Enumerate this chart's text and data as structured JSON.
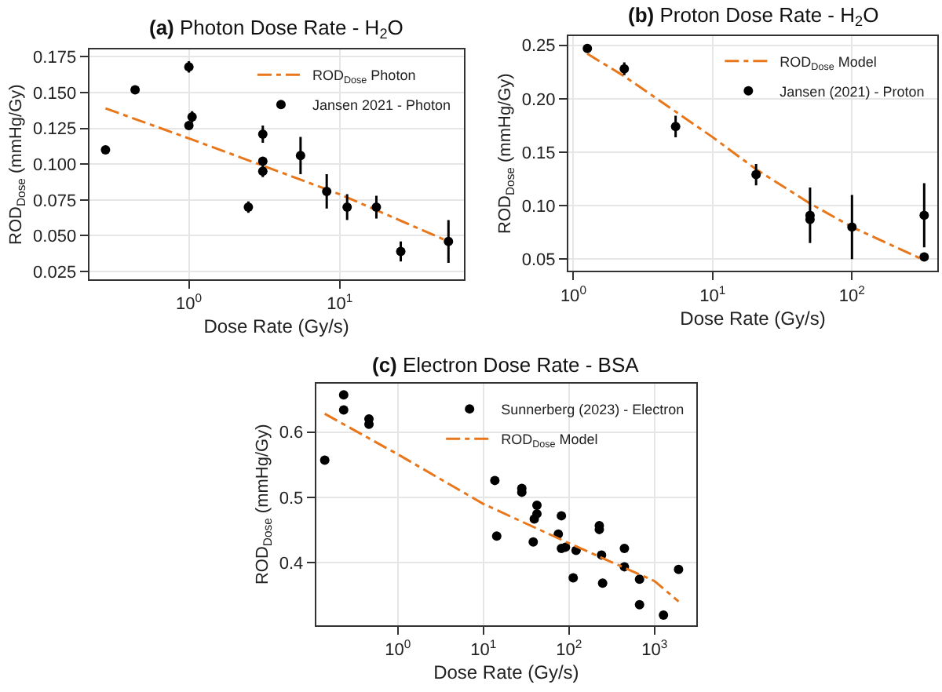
{
  "chart_data": [
    {
      "type": "scatter",
      "title": "(a) Photon Dose Rate - H$_{2}$O",
      "xlabel": "Dose Rate (Gy/s)",
      "ylabel": "ROD$_{Dose}$ (mmHg/Gy)",
      "log": "x",
      "grid": true,
      "legend": "top right",
      "xlim": [
        0.218,
        66.4
      ],
      "xticks": [
        {
          "value": 1,
          "label": "10$^{0}$"
        },
        {
          "value": 10,
          "label": "10$^{1}$"
        }
      ],
      "ylim": [
        0.0196,
        0.18
      ],
      "yticks": [
        {
          "value": 0.025,
          "label": "0.025"
        },
        {
          "value": 0.05,
          "label": "0.050"
        },
        {
          "value": 0.075,
          "label": "0.075"
        },
        {
          "value": 0.1,
          "label": "0.100"
        },
        {
          "value": 0.125,
          "label": "0.125"
        },
        {
          "value": 0.15,
          "label": "0.150"
        },
        {
          "value": 0.175,
          "label": "0.175"
        }
      ],
      "series": [
        {
          "name": "ROD$_{Dose}$ Photon",
          "type": "line",
          "line_style": "dashed",
          "marker": "none",
          "color": "#e8761a",
          "x": [
            0.28,
            1,
            3.09,
            10,
            52.6
          ],
          "values": [
            0.139,
            0.118,
            0.099,
            0.079,
            0.046
          ]
        },
        {
          "name": "Jansen 2021 - Photon",
          "marker": "circle",
          "color": "#000000",
          "x": [
            0.28,
            0.44,
            1.0,
            1.0,
            1.05,
            2.48,
            3.09,
            3.09,
            3.09,
            5.5,
            8.2,
            11.2,
            17.5,
            25.4,
            52.6
          ],
          "values": [
            0.11,
            0.152,
            0.168,
            0.127,
            0.133,
            0.07,
            0.121,
            0.102,
            0.095,
            0.106,
            0.081,
            0.07,
            0.07,
            0.039,
            0.046
          ],
          "errors": [
            null,
            null,
            0.004,
            null,
            0.004,
            0.004,
            0.006,
            null,
            0.004,
            0.013,
            0.012,
            0.009,
            0.008,
            0.007,
            0.015
          ]
        }
      ]
    },
    {
      "type": "scatter",
      "title": "(b) Proton Dose Rate - H$_{2}$O",
      "xlabel": "Dose Rate (Gy/s)",
      "ylabel": "ROD$_{Dose}$ (mmHg/Gy)",
      "log": "x",
      "grid": true,
      "legend": "top right",
      "xlim": [
        0.92,
        410
      ],
      "xticks": [
        {
          "value": 1,
          "label": "10$^{0}$"
        },
        {
          "value": 10,
          "label": "10$^{1}$"
        },
        {
          "value": 100,
          "label": "10$^{2}$"
        }
      ],
      "ylim": [
        0.0389,
        0.2587
      ],
      "yticks": [
        {
          "value": 0.05,
          "label": "0.05"
        },
        {
          "value": 0.1,
          "label": "0.10"
        },
        {
          "value": 0.15,
          "label": "0.15"
        },
        {
          "value": 0.2,
          "label": "0.20"
        },
        {
          "value": 0.25,
          "label": "0.25"
        }
      ],
      "series": [
        {
          "name": "ROD$_{Dose}$ Model",
          "type": "line",
          "line_style": "dashed",
          "marker": "none",
          "color": "#e8761a",
          "x": [
            1.26,
            2.32,
            10,
            20.5,
            50,
            100,
            330
          ],
          "values": [
            0.242,
            0.221,
            0.164,
            0.134,
            0.102,
            0.08,
            0.049
          ]
        },
        {
          "name": "Jansen (2021) - Proton",
          "marker": "circle",
          "color": "#000000",
          "x": [
            1.26,
            2.32,
            5.42,
            20.5,
            50,
            50,
            100,
            330,
            330
          ],
          "values": [
            0.247,
            0.228,
            0.174,
            0.129,
            0.091,
            0.087,
            0.08,
            0.091,
            0.052
          ],
          "errors": [
            null,
            0.006,
            0.01,
            0.01,
            0.026,
            null,
            0.03,
            0.03,
            0.003
          ]
        }
      ]
    },
    {
      "type": "scatter",
      "title": "(c) Electron Dose Rate - BSA",
      "xlabel": "Dose Rate (Gy/s)",
      "ylabel": "ROD$_{Dose}$ (mmHg/Gy)",
      "log": "x",
      "grid": true,
      "legend": "top right",
      "xlim": [
        0.111,
        3073
      ],
      "xticks": [
        {
          "value": 1,
          "label": "10$^{0}$"
        },
        {
          "value": 10,
          "label": "10$^{1}$"
        },
        {
          "value": 100,
          "label": "10$^{2}$"
        },
        {
          "value": 1000,
          "label": "10$^{3}$"
        }
      ],
      "ylim": [
        0.305,
        0.674
      ],
      "yticks": [
        {
          "value": 0.4,
          "label": "0.4"
        },
        {
          "value": 0.5,
          "label": "0.5"
        },
        {
          "value": 0.6,
          "label": "0.6"
        }
      ],
      "series": [
        {
          "name": "Sunnerberg (2023) - Electron",
          "marker": "circle",
          "color": "#000000",
          "x": [
            0.14,
            0.233,
            0.233,
            0.46,
            0.46,
            13.6,
            14.3,
            28.1,
            28.1,
            38.2,
            39.3,
            42.2,
            42.2,
            75,
            81.5,
            81.5,
            91,
            112,
            121,
            226,
            226,
            240,
            247,
            444,
            444,
            667,
            667,
            1270,
            1906
          ],
          "values": [
            0.557,
            0.657,
            0.634,
            0.62,
            0.612,
            0.526,
            0.441,
            0.514,
            0.508,
            0.432,
            0.467,
            0.475,
            0.488,
            0.444,
            0.422,
            0.472,
            0.424,
            0.377,
            0.419,
            0.457,
            0.451,
            0.412,
            0.369,
            0.422,
            0.394,
            0.375,
            0.336,
            0.32,
            0.39
          ]
        },
        {
          "name": "ROD$_{Dose}$ Model",
          "type": "line",
          "line_style": "dashed",
          "marker": "none",
          "color": "#e8761a",
          "x": [
            0.14,
            1,
            10,
            100,
            1000,
            1906
          ],
          "values": [
            0.628,
            0.566,
            0.49,
            0.43,
            0.372,
            0.341
          ]
        }
      ]
    }
  ]
}
